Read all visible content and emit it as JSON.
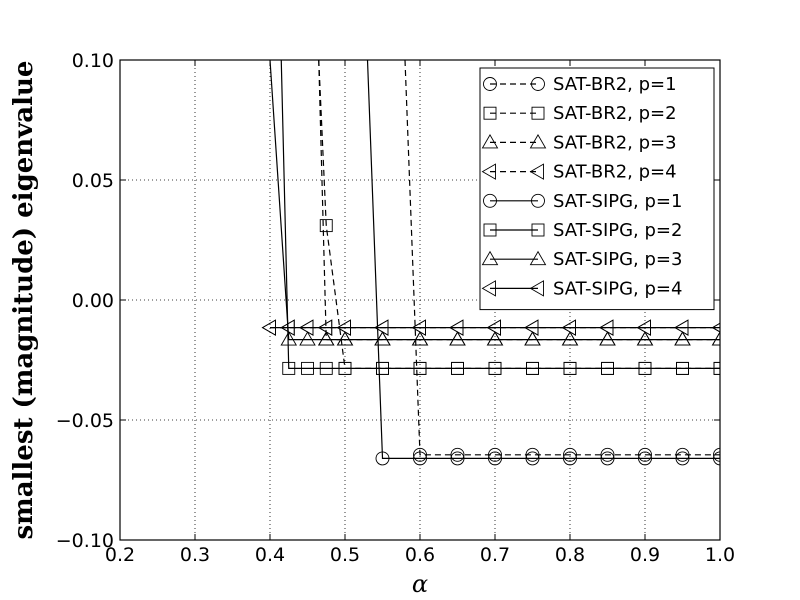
{
  "chart_data": {
    "type": "line",
    "title": "",
    "xlabel": "α",
    "ylabel": "smallest (magnitude) eigenvalue",
    "xlim": [
      0.2,
      1.0
    ],
    "ylim": [
      -0.1,
      0.1
    ],
    "xticks": [
      0.2,
      0.3,
      0.4,
      0.5,
      0.6,
      0.7,
      0.8,
      0.9,
      1.0
    ],
    "xtick_labels": [
      "0.2",
      "0.3",
      "0.4",
      "0.5",
      "0.6",
      "0.7",
      "0.8",
      "0.9",
      "1.0"
    ],
    "yticks": [
      -0.1,
      -0.05,
      0.0,
      0.05,
      0.1
    ],
    "ytick_labels": [
      "−0.10",
      "−0.05",
      "0.00",
      "0.05",
      "0.10"
    ],
    "grid": true,
    "legend_position": "top-right",
    "series": [
      {
        "name": "SAT-BR2, p=1",
        "marker": "circle",
        "linestyle": "dashed",
        "x": [
          0.58,
          0.6,
          0.65,
          0.7,
          0.75,
          0.8,
          0.85,
          0.9,
          0.95,
          1.0
        ],
        "y": [
          0.1,
          -0.0645,
          -0.0645,
          -0.0645,
          -0.0645,
          -0.0645,
          -0.0645,
          -0.0645,
          -0.0645,
          -0.0645
        ]
      },
      {
        "name": "SAT-BR2, p=2",
        "marker": "square",
        "linestyle": "dashed",
        "x": [
          0.465,
          0.475,
          0.5,
          0.55,
          0.6,
          0.65,
          0.7,
          0.75,
          0.8,
          0.85,
          0.9,
          0.95,
          1.0
        ],
        "y": [
          0.1,
          0.031,
          -0.0285,
          -0.0285,
          -0.0285,
          -0.0285,
          -0.0285,
          -0.0285,
          -0.0285,
          -0.0285,
          -0.0285,
          -0.0285,
          -0.0285
        ]
      },
      {
        "name": "SAT-BR2, p=3",
        "marker": "triangle-up",
        "linestyle": "dashed",
        "x": [
          0.465,
          0.475,
          0.5,
          0.55,
          0.6,
          0.65,
          0.7,
          0.75,
          0.8,
          0.85,
          0.9,
          0.95,
          1.0
        ],
        "y": [
          0.1,
          -0.0165,
          -0.0165,
          -0.0165,
          -0.0165,
          -0.0165,
          -0.0165,
          -0.0165,
          -0.0165,
          -0.0165,
          -0.0165,
          -0.0165,
          -0.0165
        ]
      },
      {
        "name": "SAT-BR2, p=4",
        "marker": "triangle-left",
        "linestyle": "dashed",
        "x": [
          0.4,
          0.425,
          0.45,
          0.475,
          0.5,
          0.55,
          0.6,
          0.65,
          0.7,
          0.75,
          0.8,
          0.85,
          0.9,
          0.95,
          1.0
        ],
        "y": [
          -0.0115,
          -0.0115,
          -0.0115,
          -0.0115,
          -0.0115,
          -0.0115,
          -0.0115,
          -0.0115,
          -0.0115,
          -0.0115,
          -0.0115,
          -0.0115,
          -0.0115,
          -0.0115,
          -0.0115
        ]
      },
      {
        "name": "SAT-SIPG, p=1",
        "marker": "circle",
        "linestyle": "solid",
        "x": [
          0.53,
          0.55,
          0.6,
          0.65,
          0.7,
          0.75,
          0.8,
          0.85,
          0.9,
          0.95,
          1.0
        ],
        "y": [
          0.1,
          -0.066,
          -0.066,
          -0.066,
          -0.066,
          -0.066,
          -0.066,
          -0.066,
          -0.066,
          -0.066,
          -0.066
        ]
      },
      {
        "name": "SAT-SIPG, p=2",
        "marker": "square",
        "linestyle": "solid",
        "x": [
          0.415,
          0.425,
          0.45,
          0.475,
          0.5,
          0.55,
          0.6,
          0.65,
          0.7,
          0.75,
          0.8,
          0.85,
          0.9,
          0.95,
          1.0
        ],
        "y": [
          0.1,
          -0.0285,
          -0.0285,
          -0.0285,
          -0.0285,
          -0.0285,
          -0.0285,
          -0.0285,
          -0.0285,
          -0.0285,
          -0.0285,
          -0.0285,
          -0.0285,
          -0.0285,
          -0.0285
        ]
      },
      {
        "name": "SAT-SIPG, p=3",
        "marker": "triangle-up",
        "linestyle": "solid",
        "x": [
          0.4,
          0.425,
          0.45,
          0.475,
          0.5,
          0.55,
          0.6,
          0.65,
          0.7,
          0.75,
          0.8,
          0.85,
          0.9,
          0.95,
          1.0
        ],
        "y": [
          0.1,
          -0.0165,
          -0.0165,
          -0.0165,
          -0.0165,
          -0.0165,
          -0.0165,
          -0.0165,
          -0.0165,
          -0.0165,
          -0.0165,
          -0.0165,
          -0.0165,
          -0.0165,
          -0.0165
        ]
      },
      {
        "name": "SAT-SIPG, p=4",
        "marker": "triangle-left",
        "linestyle": "solid",
        "x": [
          0.4,
          0.425,
          0.45,
          0.475,
          0.5,
          0.55,
          0.6,
          0.65,
          0.7,
          0.75,
          0.8,
          0.85,
          0.9,
          0.95,
          1.0
        ],
        "y": [
          -0.0115,
          -0.0115,
          -0.0115,
          -0.0115,
          -0.0115,
          -0.0115,
          -0.0115,
          -0.0115,
          -0.0115,
          -0.0115,
          -0.0115,
          -0.0115,
          -0.0115,
          -0.0115,
          -0.0115
        ]
      }
    ]
  }
}
